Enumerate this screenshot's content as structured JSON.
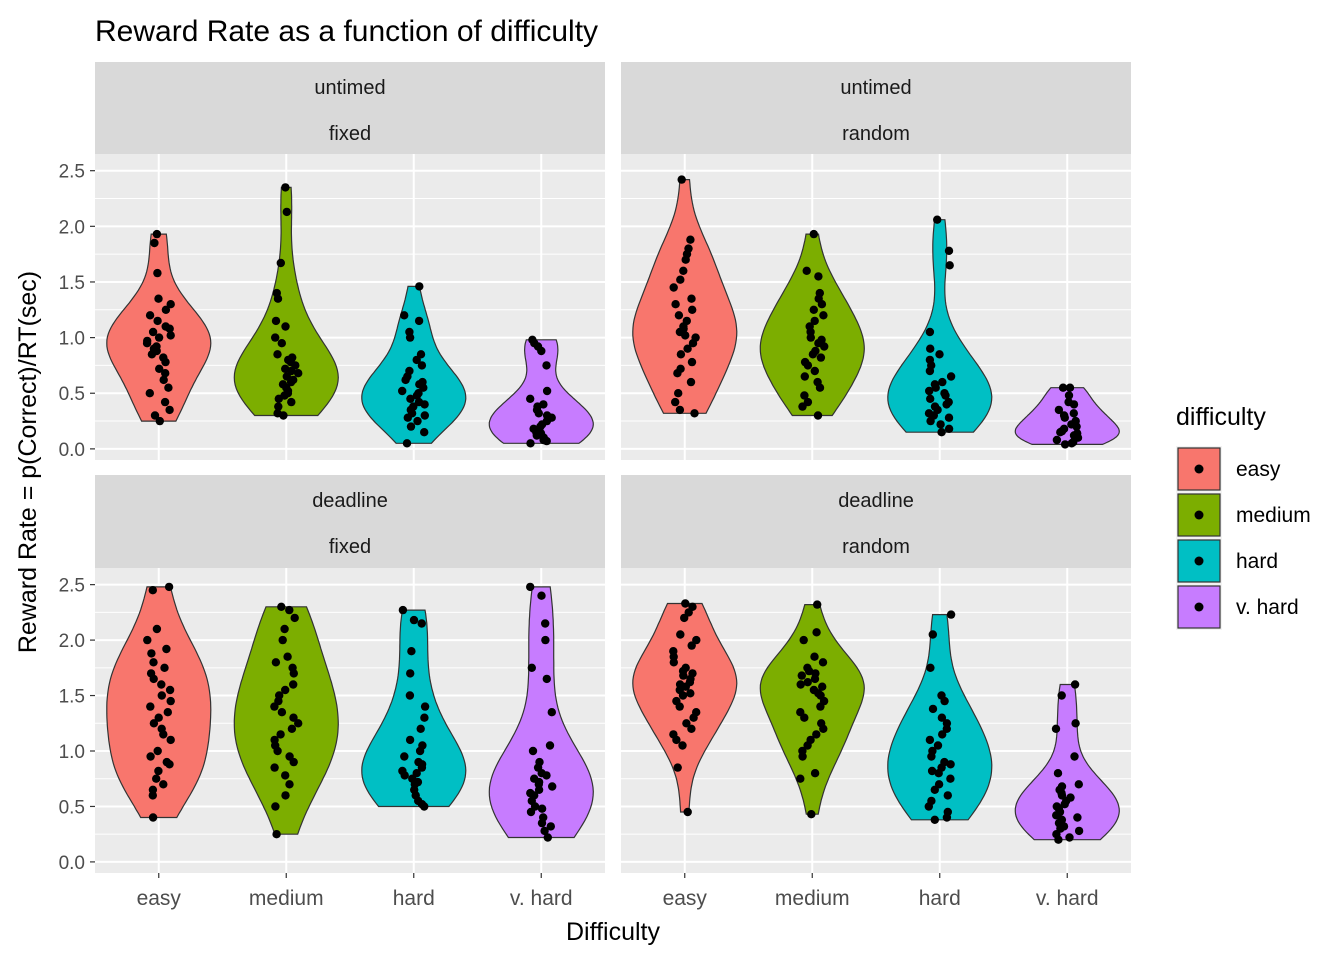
{
  "chart_data": {
    "type": "violin",
    "title": "Reward Rate as a function of difficulty",
    "xlabel": "Difficulty",
    "ylabel": "Reward Rate = p(Correct)/RT(sec)",
    "categories": [
      "easy",
      "medium",
      "hard",
      "v. hard"
    ],
    "ylim": [
      -0.1,
      2.65
    ],
    "yticks": [
      0.0,
      0.5,
      1.0,
      1.5,
      2.0,
      2.5
    ],
    "ytick_labels": [
      "0.0",
      "0.5",
      "1.0",
      "1.5",
      "2.0",
      "2.5"
    ],
    "grid": true,
    "legend": {
      "title": "difficulty",
      "position": "right",
      "entries": [
        {
          "label": "easy",
          "color": "#F8766D"
        },
        {
          "label": "medium",
          "color": "#7CAE00"
        },
        {
          "label": "hard",
          "color": "#00BFC4"
        },
        {
          "label": "v. hard",
          "color": "#C77CFF"
        }
      ]
    },
    "facets": [
      {
        "strip": [
          "untimed",
          "fixed"
        ],
        "series": [
          {
            "category": "easy",
            "points": [
              0.25,
              0.3,
              0.35,
              0.42,
              0.5,
              0.55,
              0.62,
              0.68,
              0.72,
              0.78,
              0.82,
              0.85,
              0.88,
              0.9,
              0.92,
              0.95,
              0.97,
              1.0,
              1.02,
              1.05,
              1.08,
              1.1,
              1.15,
              1.2,
              1.25,
              1.3,
              1.35,
              1.58,
              1.85,
              1.93
            ]
          },
          {
            "category": "medium",
            "points": [
              0.3,
              0.32,
              0.38,
              0.42,
              0.45,
              0.48,
              0.5,
              0.52,
              0.55,
              0.58,
              0.6,
              0.62,
              0.65,
              0.68,
              0.7,
              0.72,
              0.75,
              0.78,
              0.8,
              0.82,
              0.85,
              0.95,
              1.0,
              1.1,
              1.15,
              1.35,
              1.4,
              1.67,
              2.13,
              2.35
            ]
          },
          {
            "category": "hard",
            "points": [
              0.05,
              0.15,
              0.2,
              0.25,
              0.28,
              0.3,
              0.32,
              0.35,
              0.38,
              0.4,
              0.42,
              0.45,
              0.48,
              0.5,
              0.52,
              0.55,
              0.58,
              0.6,
              0.62,
              0.65,
              0.7,
              0.75,
              0.8,
              0.85,
              1.0,
              1.05,
              1.15,
              1.2,
              1.46
            ]
          },
          {
            "category": "v. hard",
            "points": [
              0.05,
              0.07,
              0.08,
              0.1,
              0.12,
              0.14,
              0.15,
              0.18,
              0.2,
              0.22,
              0.25,
              0.28,
              0.3,
              0.32,
              0.35,
              0.38,
              0.4,
              0.45,
              0.52,
              0.75,
              0.88,
              0.92,
              0.95,
              0.98
            ]
          }
        ]
      },
      {
        "strip": [
          "untimed",
          "random"
        ],
        "series": [
          {
            "category": "easy",
            "points": [
              0.32,
              0.35,
              0.42,
              0.5,
              0.6,
              0.68,
              0.72,
              0.78,
              0.85,
              0.9,
              0.95,
              1.0,
              1.02,
              1.05,
              1.08,
              1.1,
              1.15,
              1.2,
              1.25,
              1.3,
              1.35,
              1.45,
              1.52,
              1.6,
              1.7,
              1.75,
              1.8,
              1.88,
              2.42
            ]
          },
          {
            "category": "medium",
            "points": [
              0.3,
              0.38,
              0.42,
              0.48,
              0.55,
              0.6,
              0.65,
              0.7,
              0.75,
              0.78,
              0.82,
              0.85,
              0.88,
              0.92,
              0.95,
              0.98,
              1.0,
              1.05,
              1.1,
              1.15,
              1.2,
              1.25,
              1.3,
              1.35,
              1.4,
              1.55,
              1.6,
              1.93
            ]
          },
          {
            "category": "hard",
            "points": [
              0.15,
              0.18,
              0.22,
              0.25,
              0.28,
              0.3,
              0.32,
              0.35,
              0.38,
              0.4,
              0.42,
              0.45,
              0.48,
              0.5,
              0.52,
              0.55,
              0.58,
              0.6,
              0.65,
              0.7,
              0.75,
              0.8,
              0.85,
              0.9,
              1.05,
              1.65,
              1.78,
              2.06
            ]
          },
          {
            "category": "v. hard",
            "points": [
              0.04,
              0.05,
              0.06,
              0.08,
              0.1,
              0.12,
              0.14,
              0.15,
              0.16,
              0.18,
              0.2,
              0.22,
              0.25,
              0.28,
              0.3,
              0.32,
              0.35,
              0.4,
              0.42,
              0.48,
              0.55,
              0.55
            ]
          }
        ]
      },
      {
        "strip": [
          "deadline",
          "fixed"
        ],
        "series": [
          {
            "category": "easy",
            "points": [
              0.4,
              0.6,
              0.65,
              0.7,
              0.75,
              0.82,
              0.88,
              0.9,
              0.95,
              1.0,
              1.1,
              1.15,
              1.2,
              1.25,
              1.3,
              1.35,
              1.4,
              1.45,
              1.5,
              1.55,
              1.6,
              1.65,
              1.7,
              1.75,
              1.8,
              1.88,
              1.92,
              2.0,
              2.1,
              2.45,
              2.48
            ]
          },
          {
            "category": "medium",
            "points": [
              0.25,
              0.5,
              0.6,
              0.7,
              0.78,
              0.85,
              0.9,
              0.95,
              1.0,
              1.05,
              1.1,
              1.15,
              1.2,
              1.25,
              1.3,
              1.35,
              1.4,
              1.45,
              1.5,
              1.55,
              1.6,
              1.7,
              1.75,
              1.8,
              1.85,
              2.0,
              2.1,
              2.2,
              2.27,
              2.3
            ]
          },
          {
            "category": "hard",
            "points": [
              0.5,
              0.52,
              0.55,
              0.6,
              0.65,
              0.7,
              0.72,
              0.75,
              0.78,
              0.8,
              0.82,
              0.85,
              0.88,
              0.9,
              0.95,
              1.0,
              1.05,
              1.1,
              1.2,
              1.3,
              1.4,
              1.5,
              1.7,
              1.9,
              2.15,
              2.18,
              2.27
            ]
          },
          {
            "category": "v. hard",
            "points": [
              0.22,
              0.28,
              0.32,
              0.35,
              0.4,
              0.45,
              0.48,
              0.5,
              0.55,
              0.6,
              0.62,
              0.65,
              0.68,
              0.7,
              0.72,
              0.75,
              0.78,
              0.8,
              0.85,
              0.9,
              1.0,
              1.05,
              1.35,
              1.65,
              1.75,
              2.0,
              2.15,
              2.4,
              2.48
            ]
          }
        ]
      },
      {
        "strip": [
          "deadline",
          "random"
        ],
        "series": [
          {
            "category": "easy",
            "points": [
              0.45,
              0.85,
              1.05,
              1.1,
              1.15,
              1.2,
              1.25,
              1.3,
              1.35,
              1.4,
              1.45,
              1.5,
              1.52,
              1.55,
              1.58,
              1.6,
              1.62,
              1.65,
              1.68,
              1.7,
              1.72,
              1.75,
              1.8,
              1.85,
              1.9,
              1.95,
              2.0,
              2.05,
              2.2,
              2.25,
              2.3,
              2.33
            ]
          },
          {
            "category": "medium",
            "points": [
              0.43,
              0.75,
              0.8,
              0.95,
              1.0,
              1.05,
              1.1,
              1.15,
              1.2,
              1.25,
              1.3,
              1.35,
              1.4,
              1.45,
              1.5,
              1.52,
              1.55,
              1.58,
              1.6,
              1.62,
              1.65,
              1.68,
              1.7,
              1.72,
              1.75,
              1.8,
              1.85,
              2.0,
              2.07,
              2.32
            ]
          },
          {
            "category": "hard",
            "points": [
              0.38,
              0.4,
              0.45,
              0.5,
              0.55,
              0.6,
              0.65,
              0.7,
              0.75,
              0.8,
              0.82,
              0.85,
              0.88,
              0.9,
              0.95,
              1.0,
              1.05,
              1.1,
              1.15,
              1.2,
              1.25,
              1.3,
              1.38,
              1.45,
              1.5,
              1.75,
              2.05,
              2.23
            ]
          },
          {
            "category": "v. hard",
            "points": [
              0.2,
              0.22,
              0.25,
              0.28,
              0.3,
              0.32,
              0.35,
              0.38,
              0.4,
              0.42,
              0.45,
              0.48,
              0.5,
              0.52,
              0.55,
              0.58,
              0.6,
              0.62,
              0.65,
              0.68,
              0.7,
              0.8,
              0.95,
              1.2,
              1.25,
              1.5,
              1.6
            ]
          }
        ]
      }
    ]
  }
}
